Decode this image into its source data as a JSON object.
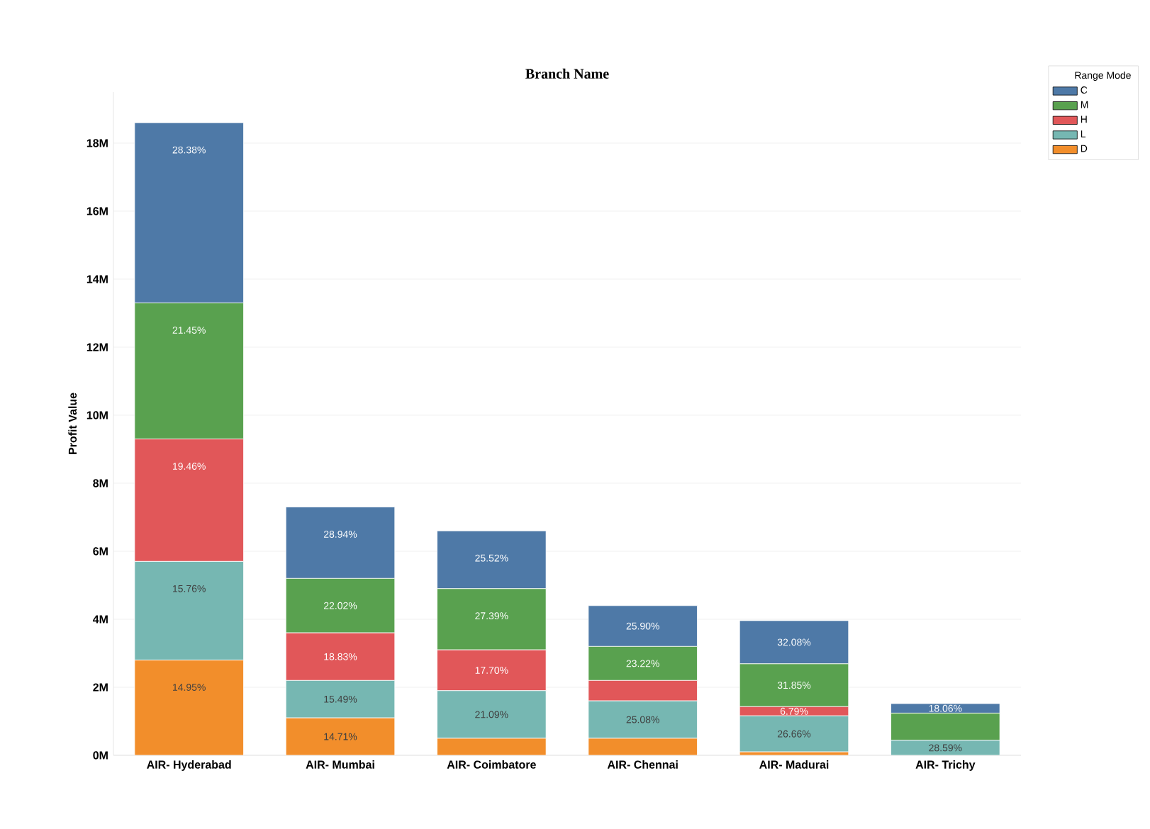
{
  "chart_data": {
    "type": "bar",
    "stacked": true,
    "title": "Branch Name",
    "ylabel": "Profit Value",
    "legend_title": "Range Mode",
    "legend": "top right",
    "grid": "y",
    "categories": [
      "AIR- Hyderabad",
      "AIR- Mumbai",
      "AIR- Coimbatore",
      "AIR- Chennai",
      "AIR- Madurai",
      "AIR- Trichy"
    ],
    "ylim": [
      0,
      19.5
    ],
    "yticks": [
      {
        "value": 0,
        "label": "0M"
      },
      {
        "value": 2,
        "label": "2M"
      },
      {
        "value": 4,
        "label": "4M"
      },
      {
        "value": 6,
        "label": "6M"
      },
      {
        "value": 8,
        "label": "8M"
      },
      {
        "value": 10,
        "label": "10M"
      },
      {
        "value": 12,
        "label": "12M"
      },
      {
        "value": 14,
        "label": "14M"
      },
      {
        "value": 16,
        "label": "16M"
      },
      {
        "value": 18,
        "label": "18M"
      }
    ],
    "series": [
      {
        "name": "D",
        "color": "#f28e2b",
        "values": [
          2.8,
          1.1,
          0.5,
          0.5,
          0.1,
          null
        ]
      },
      {
        "name": "L",
        "color": "#76b7b2",
        "values": [
          2.9,
          1.1,
          1.4,
          1.1,
          1.06,
          0.44
        ]
      },
      {
        "name": "H",
        "color": "#e15759",
        "values": [
          3.6,
          1.4,
          1.2,
          0.6,
          0.27,
          null
        ]
      },
      {
        "name": "M",
        "color": "#59a14f",
        "values": [
          4.0,
          1.6,
          1.8,
          1.0,
          1.26,
          0.8
        ]
      },
      {
        "name": "C",
        "color": "#4e79a7",
        "values": [
          5.3,
          2.1,
          1.7,
          1.2,
          1.27,
          0.28
        ]
      }
    ],
    "annotations": [
      {
        "text": "14.95%",
        "x": "AIR- Hyderabad",
        "y": 2.8
      },
      {
        "text": "15.76%",
        "x": "AIR- Hyderabad",
        "y": 5.7
      },
      {
        "text": "19.46%",
        "x": "AIR- Hyderabad",
        "y": 9.3
      },
      {
        "text": "21.45%",
        "x": "AIR- Hyderabad",
        "y": 13.3
      },
      {
        "text": "28.38%",
        "x": "AIR- Hyderabad",
        "y": 18.6
      },
      {
        "text": "14.71%",
        "x": "AIR- Mumbai",
        "y": 1.1
      },
      {
        "text": "15.49%",
        "x": "AIR- Mumbai",
        "y": 2.2
      },
      {
        "text": "18.83%",
        "x": "AIR- Mumbai",
        "y": 3.6
      },
      {
        "text": "22.02%",
        "x": "AIR- Mumbai",
        "y": 5.2
      },
      {
        "text": "28.94%",
        "x": "AIR- Mumbai",
        "y": 7.3
      },
      {
        "text": "21.09%",
        "x": "AIR- Coimbatore",
        "y": 1.9
      },
      {
        "text": "17.70%",
        "x": "AIR- Coimbatore",
        "y": 3.1
      },
      {
        "text": "27.39%",
        "x": "AIR- Coimbatore",
        "y": 4.9
      },
      {
        "text": "25.52%",
        "x": "AIR- Coimbatore",
        "y": 6.6
      },
      {
        "text": "25.08%",
        "x": "AIR- Chennai",
        "y": 1.6
      },
      {
        "text": "23.22%",
        "x": "AIR- Chennai",
        "y": 3.2
      },
      {
        "text": "25.90%",
        "x": "AIR- Chennai",
        "y": 4.4
      },
      {
        "text": "26.66%",
        "x": "AIR- Madurai",
        "y": 1.16
      },
      {
        "text": "6.79%",
        "x": "AIR- Madurai",
        "y": 1.43
      },
      {
        "text": "31.85%",
        "x": "AIR- Madurai",
        "y": 2.69
      },
      {
        "text": "32.08%",
        "x": "AIR- Madurai",
        "y": 3.96
      },
      {
        "text": "28.59%",
        "x": "AIR- Trichy",
        "y": 0.44
      },
      {
        "text": "18.06%",
        "x": "AIR- Trichy",
        "y": 1.52
      }
    ]
  }
}
